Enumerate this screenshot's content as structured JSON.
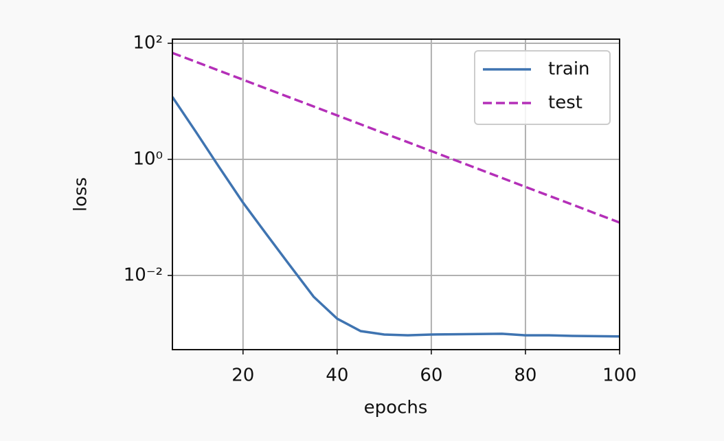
{
  "chart_data": {
    "type": "line",
    "x_label": "epochs",
    "y_label": "loss",
    "x": [
      5,
      10,
      15,
      20,
      25,
      30,
      35,
      40,
      45,
      50,
      55,
      60,
      65,
      70,
      75,
      80,
      85,
      90,
      95,
      100
    ],
    "series": [
      {
        "name": "train",
        "color": "#3f74b1",
        "dash": false,
        "values": [
          11.9,
          2.97,
          0.72,
          0.18,
          0.051,
          0.0147,
          0.0043,
          0.0018,
          0.0011,
          0.00096,
          0.00093,
          0.00096,
          0.00097,
          0.00098,
          0.00099,
          0.00093,
          0.00093,
          0.00091,
          0.0009,
          0.00089
        ]
      },
      {
        "name": "test",
        "color": "#b42fb8",
        "dash": true,
        "values": [
          68.2,
          47.9,
          33.6,
          23.6,
          16.5,
          11.6,
          8.15,
          5.72,
          4.01,
          2.81,
          1.98,
          1.39,
          0.973,
          0.683,
          0.479,
          0.336,
          0.236,
          0.166,
          0.116,
          0.0815
        ]
      }
    ],
    "xlim": [
      5,
      100
    ],
    "xticks": [
      20,
      40,
      60,
      80,
      100
    ],
    "ylim": [
      0.000527,
      117.8
    ],
    "yscale": "log",
    "yticks": [
      {
        "value": 0.01,
        "label": "10⁻²"
      },
      {
        "value": 1,
        "label": "10⁰"
      },
      {
        "value": 100,
        "label": "10²"
      }
    ],
    "grid": true,
    "legend": "upper-right"
  }
}
